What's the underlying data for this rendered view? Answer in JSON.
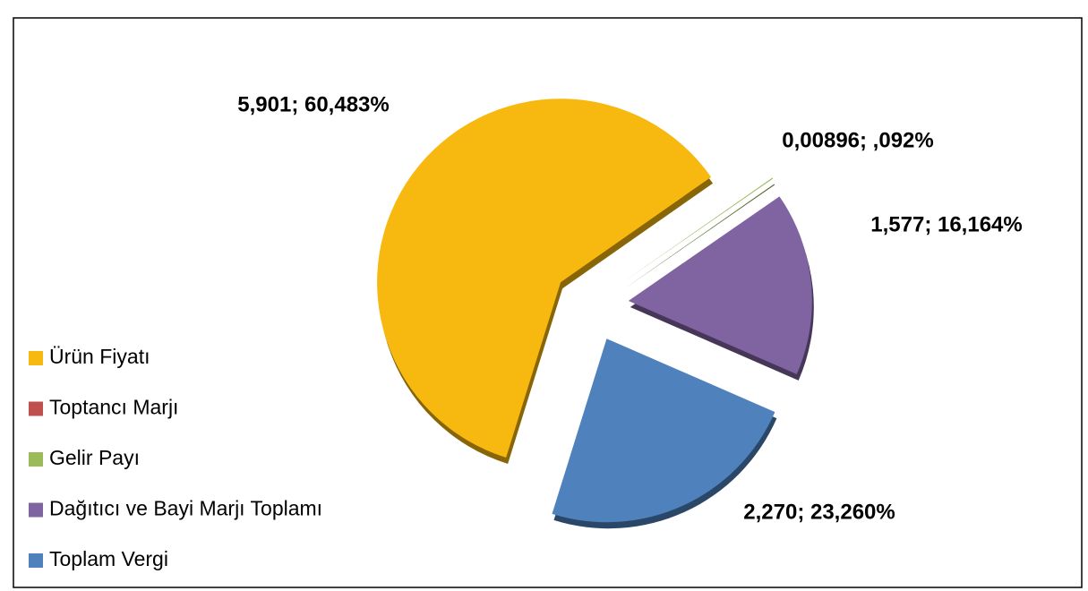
{
  "chart_data": {
    "type": "pie",
    "categories": [
      "Ürün Fiyatı",
      "Toptancı Marjı",
      "Gelir Payı",
      "Dağıtıcı ve Bayi Marjı Toplamı",
      "Toplam Vergi"
    ],
    "values": [
      5.901,
      0,
      0.00896,
      1.577,
      2.27
    ],
    "value_labels": [
      "5,901; 60,483%",
      null,
      "0,00896; ,092%",
      "1,577; 16,164%",
      "2,270; 23,260%"
    ],
    "colors": [
      "#f7b90f",
      "#c0504d",
      "#9bbb59",
      "#8064a2",
      "#4f81bd"
    ],
    "legend": "left"
  }
}
